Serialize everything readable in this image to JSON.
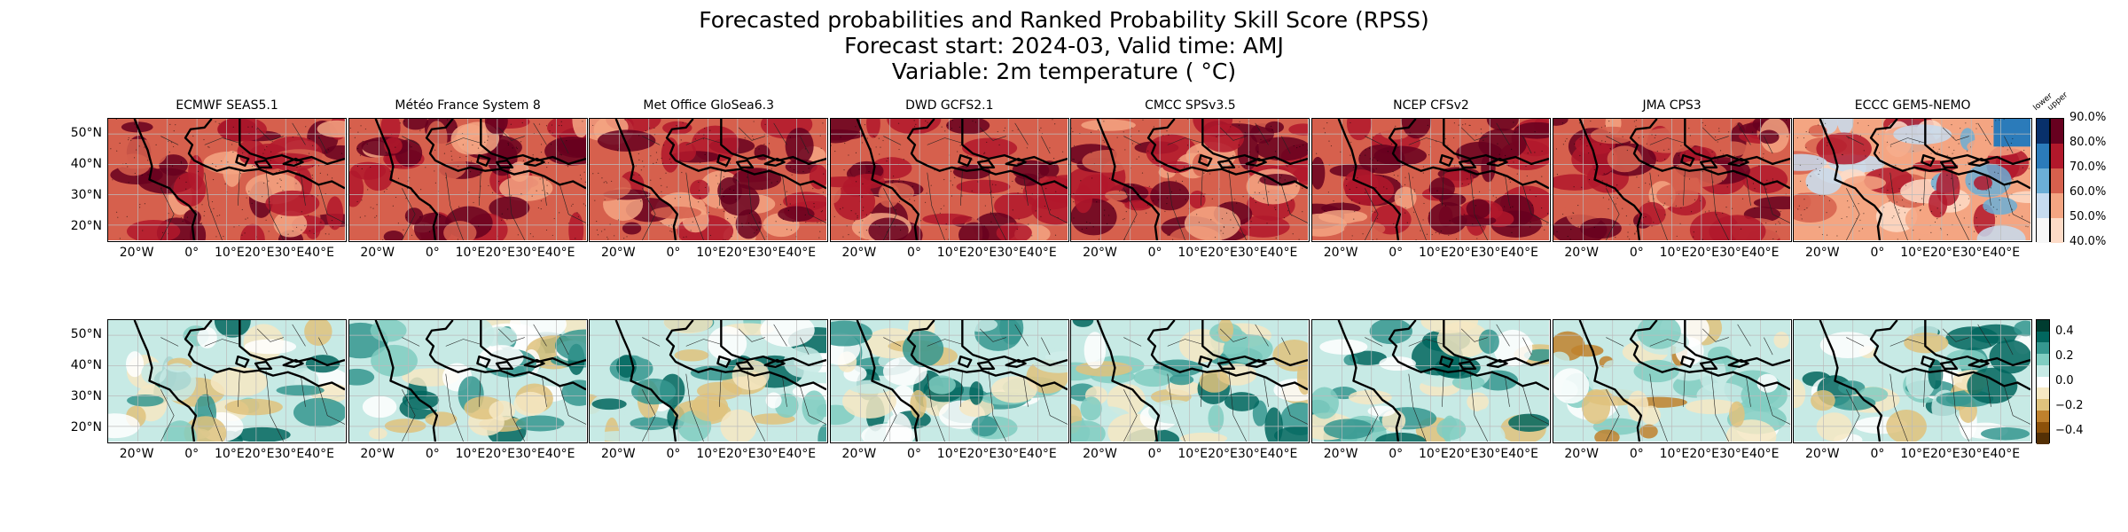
{
  "title": {
    "line1": "Forecasted probabilities and Ranked Probability Skill Score (RPSS)",
    "line2": "Forecast start: 2024-03, Valid time: AMJ",
    "line3": "Variable: 2m temperature ( °C)"
  },
  "chart_data": [
    {
      "type": "heatmap",
      "row": "probabilities",
      "panels": [
        "ECMWF SEAS5.1",
        "Météo France System 8",
        "Met Office GloSea6.3",
        "DWD GCFS2.1",
        "CMCC SPSv3.5",
        "NCEP CFSv2",
        "JMA CPS3",
        "ECCC GEM5-NEMO"
      ],
      "lat_ticks": [
        "50°N",
        "40°N",
        "30°N",
        "20°N"
      ],
      "lon_ticks": [
        "20°W",
        "0°",
        "10°E",
        "20°E",
        "30°E",
        "40°E"
      ],
      "xlim": [
        -30,
        50
      ],
      "ylim": [
        15,
        55
      ],
      "colorbar": {
        "ticks": [
          "90.0%",
          "80.0%",
          "70.0%",
          "60.0%",
          "50.0%",
          "40.0%"
        ],
        "range": [
          40,
          90
        ],
        "side_labels": [
          "lower",
          "upper"
        ],
        "colors_lower": [
          "#f7f7f7",
          "#c6dbef",
          "#6baed6",
          "#2b7bba",
          "#08306b"
        ],
        "colors_upper": [
          "#fddbc7",
          "#f4a582",
          "#d6604d",
          "#b2182b",
          "#67001f"
        ]
      }
    },
    {
      "type": "heatmap",
      "row": "rpss",
      "panels": [
        "ECMWF SEAS5.1",
        "Météo France System 8",
        "Met Office GloSea6.3",
        "DWD GCFS2.1",
        "CMCC SPSv3.5",
        "NCEP CFSv2",
        "JMA CPS3",
        "ECCC GEM5-NEMO"
      ],
      "lat_ticks": [
        "50°N",
        "40°N",
        "30°N",
        "20°N"
      ],
      "lon_ticks": [
        "20°W",
        "0°",
        "10°E",
        "20°E",
        "30°E",
        "40°E"
      ],
      "xlim": [
        -30,
        50
      ],
      "ylim": [
        15,
        55
      ],
      "colorbar": {
        "ticks": [
          "0.4",
          "0.2",
          "0.0",
          "−0.2",
          "−0.4"
        ],
        "range": [
          -0.5,
          0.5
        ],
        "colors": [
          "#543005",
          "#8c510a",
          "#bf812d",
          "#dfc27d",
          "#f6e8c3",
          "#ffffff",
          "#c7eae5",
          "#80cdc1",
          "#35978f",
          "#01665e",
          "#003c30"
        ]
      }
    }
  ]
}
